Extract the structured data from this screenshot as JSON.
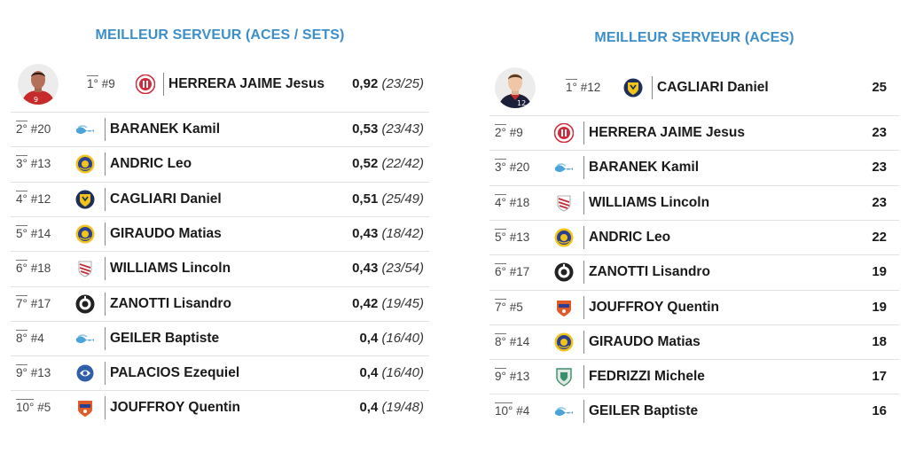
{
  "left": {
    "title": "MEILLEUR SERVEUR (ACES / SETS)",
    "rows": [
      {
        "rank": "1",
        "num": "#9",
        "name": "HERRERA JAIME Jesus",
        "value": "0,92",
        "ratio": "(23/25)",
        "logo_color": "#d12a3a",
        "logo_icon": "team-logo-red-icon"
      },
      {
        "rank": "2",
        "num": "#20",
        "name": "BARANEK Kamil",
        "value": "0,53",
        "ratio": "(23/43)",
        "logo_color": "#4aa3d9",
        "logo_icon": "team-logo-wave-icon"
      },
      {
        "rank": "3",
        "num": "#13",
        "name": "ANDRIC Leo",
        "value": "0,52",
        "ratio": "(22/42)",
        "logo_color": "#2a3f8f",
        "logo_icon": "team-logo-navy-gold-icon"
      },
      {
        "rank": "4",
        "num": "#12",
        "name": "CAGLIARI Daniel",
        "value": "0,51",
        "ratio": "(25/49)",
        "logo_color": "#f0c419",
        "logo_icon": "team-logo-yellow-shield-icon"
      },
      {
        "rank": "5",
        "num": "#14",
        "name": "GIRAUDO Matias",
        "value": "0,43",
        "ratio": "(18/42)",
        "logo_color": "#2a3f8f",
        "logo_icon": "team-logo-navy-gold-icon"
      },
      {
        "rank": "6",
        "num": "#18",
        "name": "WILLIAMS Lincoln",
        "value": "0,43",
        "ratio": "(23/54)",
        "logo_color": "#c0303b",
        "logo_icon": "team-logo-red-stripes-icon"
      },
      {
        "rank": "7",
        "num": "#17",
        "name": "ZANOTTI Lisandro",
        "value": "0,42",
        "ratio": "(19/45)",
        "logo_color": "#222222",
        "logo_icon": "team-logo-black-icon"
      },
      {
        "rank": "8",
        "num": "#4",
        "name": "GEILER Baptiste",
        "value": "0,4",
        "ratio": "(16/40)",
        "logo_color": "#4aa3d9",
        "logo_icon": "team-logo-wave-icon"
      },
      {
        "rank": "9",
        "num": "#13",
        "name": "PALACIOS Ezequiel",
        "value": "0,4",
        "ratio": "(16/40)",
        "logo_color": "#2f5fa8",
        "logo_icon": "team-logo-blue-icon"
      },
      {
        "rank": "10",
        "num": "#5",
        "name": "JOUFFROY Quentin",
        "value": "0,4",
        "ratio": "(19/48)",
        "logo_color": "#e05a2a",
        "logo_icon": "team-logo-orange-icon"
      }
    ]
  },
  "right": {
    "title": "MEILLEUR SERVEUR (ACES)",
    "rows": [
      {
        "rank": "1",
        "num": "#12",
        "name": "CAGLIARI Daniel",
        "value": "25",
        "logo_color": "#f0c419",
        "logo_icon": "team-logo-yellow-shield-icon"
      },
      {
        "rank": "2",
        "num": "#9",
        "name": "HERRERA JAIME Jesus",
        "value": "23",
        "logo_color": "#d12a3a",
        "logo_icon": "team-logo-red-icon"
      },
      {
        "rank": "3",
        "num": "#20",
        "name": "BARANEK Kamil",
        "value": "23",
        "logo_color": "#4aa3d9",
        "logo_icon": "team-logo-wave-icon"
      },
      {
        "rank": "4",
        "num": "#18",
        "name": "WILLIAMS Lincoln",
        "value": "23",
        "logo_color": "#c0303b",
        "logo_icon": "team-logo-red-stripes-icon"
      },
      {
        "rank": "5",
        "num": "#13",
        "name": "ANDRIC Leo",
        "value": "22",
        "logo_color": "#2a3f8f",
        "logo_icon": "team-logo-navy-gold-icon"
      },
      {
        "rank": "6",
        "num": "#17",
        "name": "ZANOTTI Lisandro",
        "value": "19",
        "logo_color": "#222222",
        "logo_icon": "team-logo-black-icon"
      },
      {
        "rank": "7",
        "num": "#5",
        "name": "JOUFFROY Quentin",
        "value": "19",
        "logo_color": "#e05a2a",
        "logo_icon": "team-logo-orange-icon"
      },
      {
        "rank": "8",
        "num": "#14",
        "name": "GIRAUDO Matias",
        "value": "18",
        "logo_color": "#2a3f8f",
        "logo_icon": "team-logo-navy-gold-icon"
      },
      {
        "rank": "9",
        "num": "#13",
        "name": "FEDRIZZI Michele",
        "value": "17",
        "logo_color": "#3a8f6a",
        "logo_icon": "team-logo-green-shield-icon"
      },
      {
        "rank": "10",
        "num": "#4",
        "name": "GEILER Baptiste",
        "value": "16",
        "logo_color": "#4aa3d9",
        "logo_icon": "team-logo-wave-icon"
      }
    ]
  },
  "rank_suffix": "°",
  "accent_color": "#3d8fc9"
}
